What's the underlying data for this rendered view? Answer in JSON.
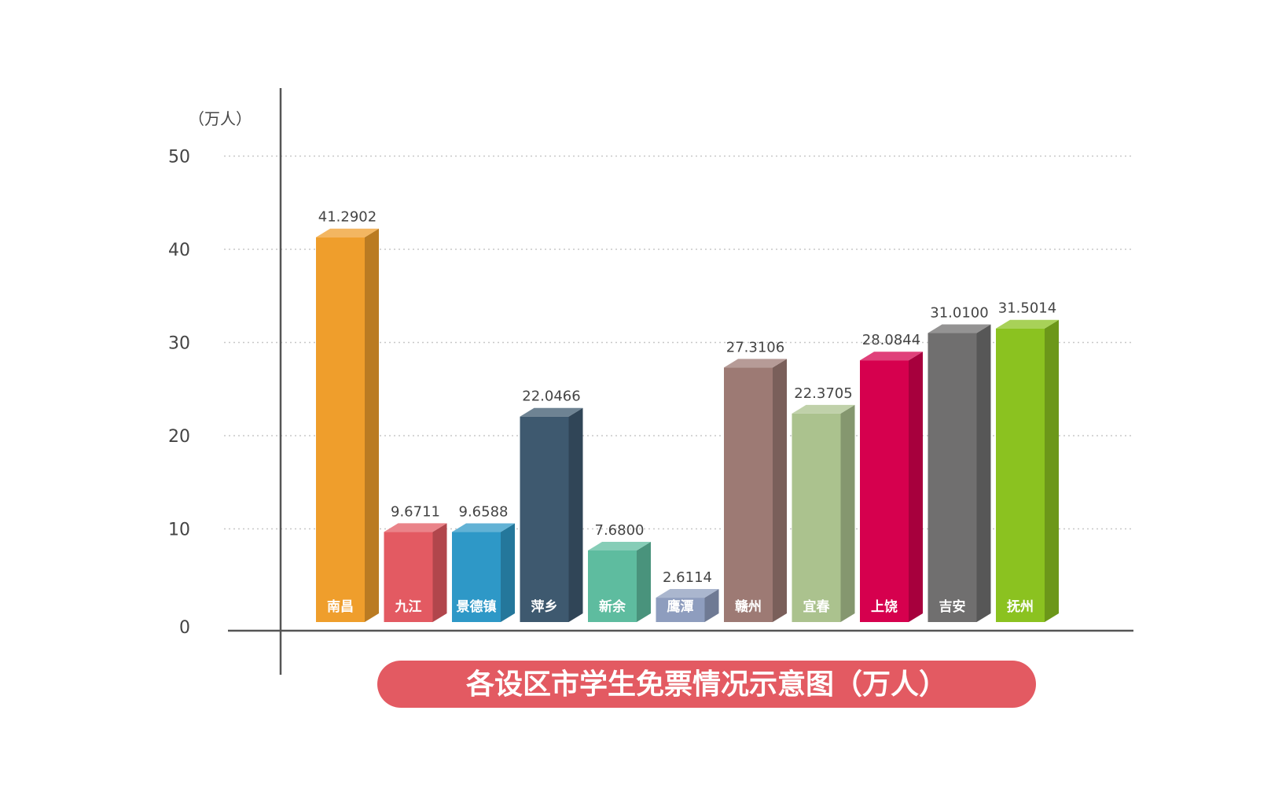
{
  "chart_data": {
    "type": "bar",
    "title": "各设区市学生免票情况示意图（万人）",
    "ylabel": "（万人）",
    "ylim": [
      0,
      50
    ],
    "yticks": [
      0,
      10,
      20,
      30,
      40,
      50
    ],
    "grid": true,
    "categories": [
      "南昌",
      "九江",
      "景德镇",
      "萍乡",
      "新余",
      "鹰潭",
      "赣州",
      "宜春",
      "上饶",
      "吉安",
      "抚州"
    ],
    "values": [
      41.2902,
      9.6711,
      9.6588,
      22.0466,
      7.68,
      2.6114,
      27.3106,
      22.3705,
      28.0844,
      31.01,
      31.5014
    ],
    "value_labels": [
      "41.2902",
      "9.6711",
      "9.6588",
      "22.0466",
      "7.6800",
      "2.6114",
      "27.3106",
      "22.3705",
      "28.0844",
      "31.0100",
      "31.5014"
    ],
    "colors": [
      "#EF9E2C",
      "#E35A62",
      "#2E98C7",
      "#3E596F",
      "#5EBC9F",
      "#8E9DBE",
      "#9D7A74",
      "#ABC28E",
      "#D6004E",
      "#706F6F",
      "#8BC220"
    ],
    "title_bg": "#E35A62"
  }
}
